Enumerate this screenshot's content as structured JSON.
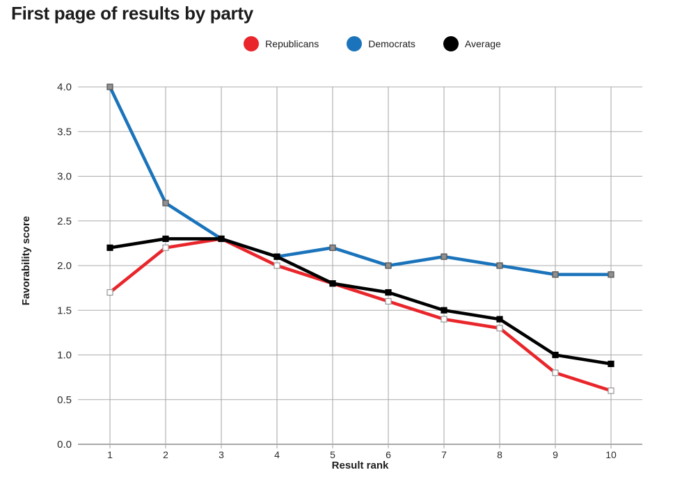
{
  "title": "First page of results by party",
  "legend": [
    {
      "label": "Republicans",
      "color": "#e8262b"
    },
    {
      "label": "Democrats",
      "color": "#1b74bb"
    },
    {
      "label": "Average",
      "color": "#000000"
    }
  ],
  "chart_data": {
    "type": "line",
    "title": "First page of results by party",
    "xlabel": "Result rank",
    "ylabel": "Favorability score",
    "x": [
      1,
      2,
      3,
      4,
      5,
      6,
      7,
      8,
      9,
      10
    ],
    "xticks": [
      "1",
      "2",
      "3",
      "4",
      "5",
      "6",
      "7",
      "8",
      "9",
      "10"
    ],
    "yticks": [
      "0.0",
      "0.5",
      "1.0",
      "1.5",
      "2.0",
      "2.5",
      "3.0",
      "3.5",
      "4.0"
    ],
    "ylim": [
      0.0,
      4.0
    ],
    "ytick_step": 0.5,
    "grid": true,
    "legend_position": "top-center",
    "grid_color": "#ababab",
    "axis_color": "#8c8c8c",
    "tick_label_color": "#2a2a2a",
    "series": [
      {
        "name": "Republicans",
        "color": "#e8262b",
        "marker": "square",
        "marker_fill": "#fdfdfd",
        "marker_stroke": "#969696",
        "values": [
          1.7,
          2.2,
          2.3,
          2.0,
          1.8,
          1.6,
          1.4,
          1.3,
          0.8,
          0.6
        ]
      },
      {
        "name": "Democrats",
        "color": "#1b74bb",
        "marker": "square",
        "marker_fill": "#8f8f8f",
        "marker_stroke": "#4f4f4f",
        "values": [
          4.0,
          2.7,
          2.3,
          2.1,
          2.2,
          2.0,
          2.1,
          2.0,
          1.9,
          1.9
        ]
      },
      {
        "name": "Average",
        "color": "#000000",
        "marker": "square",
        "marker_fill": "#000000",
        "marker_stroke": "#000000",
        "values": [
          2.2,
          2.3,
          2.3,
          2.1,
          1.8,
          1.7,
          1.5,
          1.4,
          1.0,
          0.9
        ]
      }
    ]
  }
}
